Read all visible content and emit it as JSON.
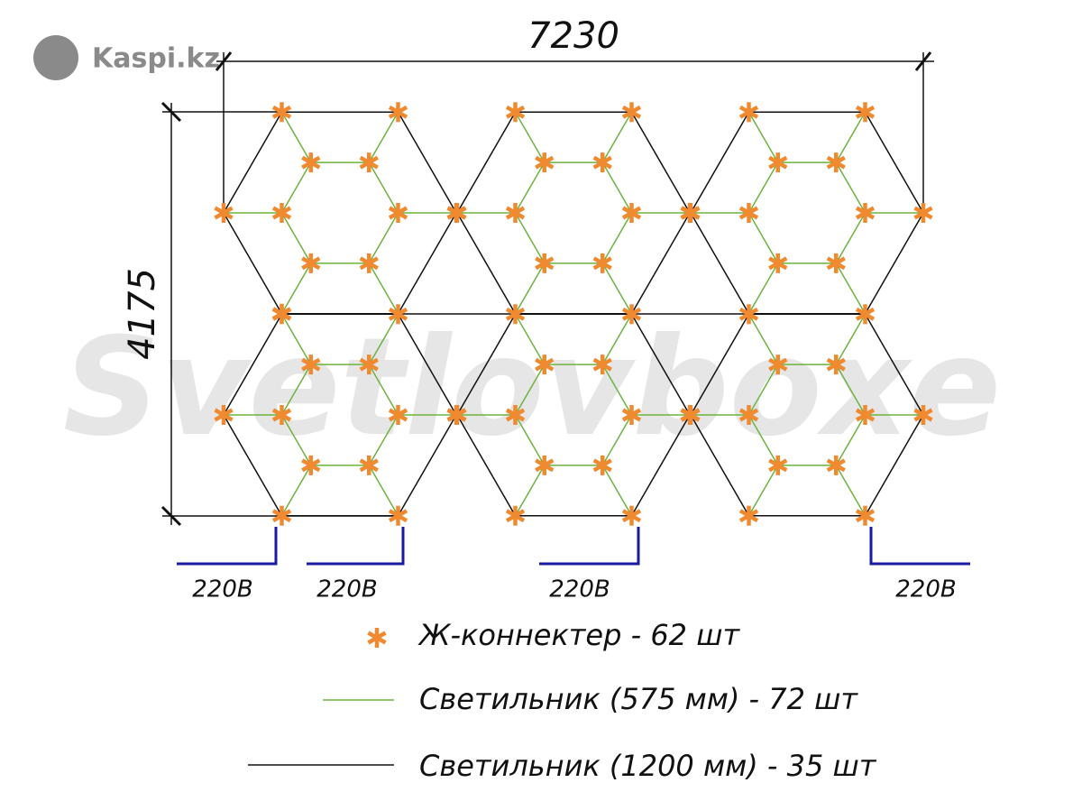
{
  "logo": "Kaspi.kz",
  "watermark": "Svetlovboxe",
  "dimensions": {
    "width": "7230",
    "height": "4175"
  },
  "power_labels": [
    "220В",
    "220В",
    "220В",
    "220В"
  ],
  "legend": [
    {
      "label": "Ж-коннектер - 62 шт"
    },
    {
      "label": "Светильник (575 мм) - 72 шт"
    },
    {
      "label": "Светильник (1200 мм) - 35 шт"
    }
  ]
}
